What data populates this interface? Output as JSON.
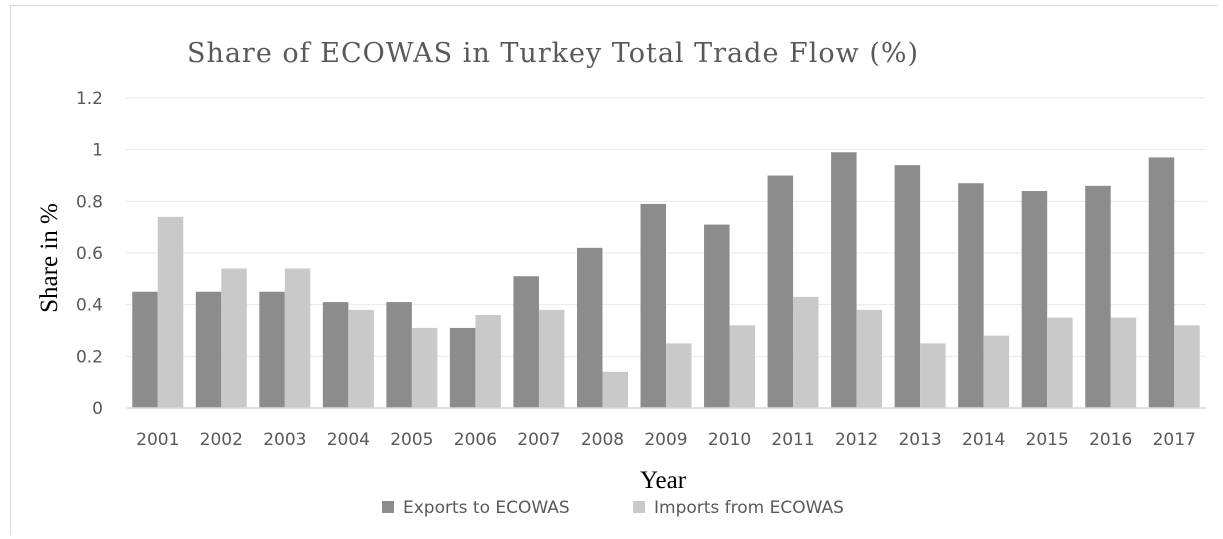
{
  "chart_data": {
    "type": "bar",
    "title": "Share of ECOWAS in Turkey Total Trade Flow (%)",
    "xlabel": "Year",
    "ylabel": "Share in %",
    "ylim": [
      0,
      1.2
    ],
    "yticks": [
      0,
      0.2,
      0.4,
      0.6,
      0.8,
      1,
      1.2
    ],
    "ytick_labels": [
      "0",
      "0.2",
      "0.4",
      "0.6",
      "0.8",
      "1",
      "1.2"
    ],
    "grid": true,
    "legend_position": "bottom",
    "categories": [
      "2001",
      "2002",
      "2003",
      "2004",
      "2005",
      "2006",
      "2007",
      "2008",
      "2009",
      "2010",
      "2011",
      "2012",
      "2013",
      "2014",
      "2015",
      "2016",
      "2017"
    ],
    "series": [
      {
        "name": "Exports to ECOWAS",
        "color": "#8c8c8c",
        "values": [
          0.45,
          0.45,
          0.45,
          0.41,
          0.41,
          0.31,
          0.51,
          0.62,
          0.79,
          0.71,
          0.9,
          0.99,
          0.94,
          0.87,
          0.84,
          0.86,
          0.97
        ]
      },
      {
        "name": "Imports from ECOWAS",
        "color": "#c9c9c9",
        "values": [
          0.74,
          0.54,
          0.54,
          0.38,
          0.31,
          0.36,
          0.38,
          0.14,
          0.25,
          0.32,
          0.43,
          0.38,
          0.25,
          0.28,
          0.35,
          0.35,
          0.32
        ]
      }
    ]
  }
}
